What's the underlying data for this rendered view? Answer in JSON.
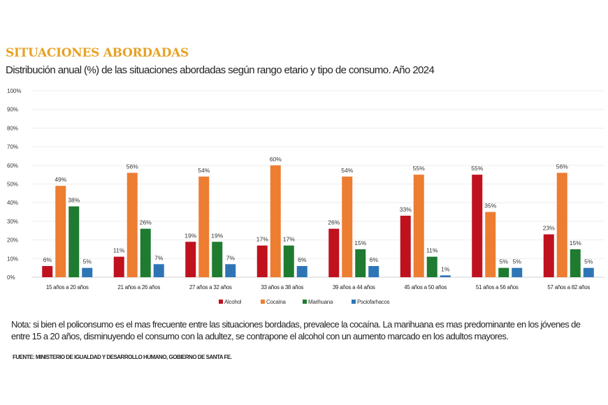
{
  "header": {
    "title": "SITUACIONES ABORDADAS",
    "subtitle": "Distribución anual (%) de las situaciones abordadas según rango etario y tipo de consumo. Año 2024"
  },
  "chart_data": {
    "type": "bar",
    "ylim": [
      0,
      100
    ],
    "yticks": [
      "0%",
      "10%",
      "20%",
      "30%",
      "40%",
      "50%",
      "60%",
      "70%",
      "80%",
      "90%",
      "100%"
    ],
    "grid": true,
    "legend": "bottom",
    "categories": [
      "15 años a 20 años",
      "21 años a 26 años",
      "27 años a 32 años",
      "33 años a 38 años",
      "39 años a 44 años",
      "45 años a 50 años",
      "51 años a 56 años",
      "57 años a 82 años"
    ],
    "series": [
      {
        "name": "Alcohol",
        "color": "#c0111f",
        "values": [
          6,
          11,
          19,
          17,
          26,
          33,
          55,
          23
        ]
      },
      {
        "name": "Cocaína",
        "color": "#ed7d31",
        "values": [
          49,
          56,
          54,
          60,
          54,
          55,
          35,
          56
        ]
      },
      {
        "name": "Marihuana",
        "color": "#1e7b30",
        "values": [
          38,
          26,
          19,
          17,
          15,
          11,
          5,
          15
        ]
      },
      {
        "name": "Psciofarhacos",
        "color": "#2e75b6",
        "values": [
          5,
          7,
          7,
          6,
          6,
          1,
          5,
          5
        ]
      }
    ]
  },
  "footer": {
    "note": "Nota: si bien el policonsumo es el mas frecuente entre las situaciones bordadas, prevalece la cocaína. La marihuana es mas predominante en los jóvenes de entre 15 a 20 años, disminuyendo el consumo con la adultez, se contrapone el alcohol con un aumento marcado en los adultos mayores.",
    "source": "FUENTE: MINISTERIO DE IGUALDAD Y DESARROLLO HUMANO, GOBIERNO DE SANTA FE."
  }
}
